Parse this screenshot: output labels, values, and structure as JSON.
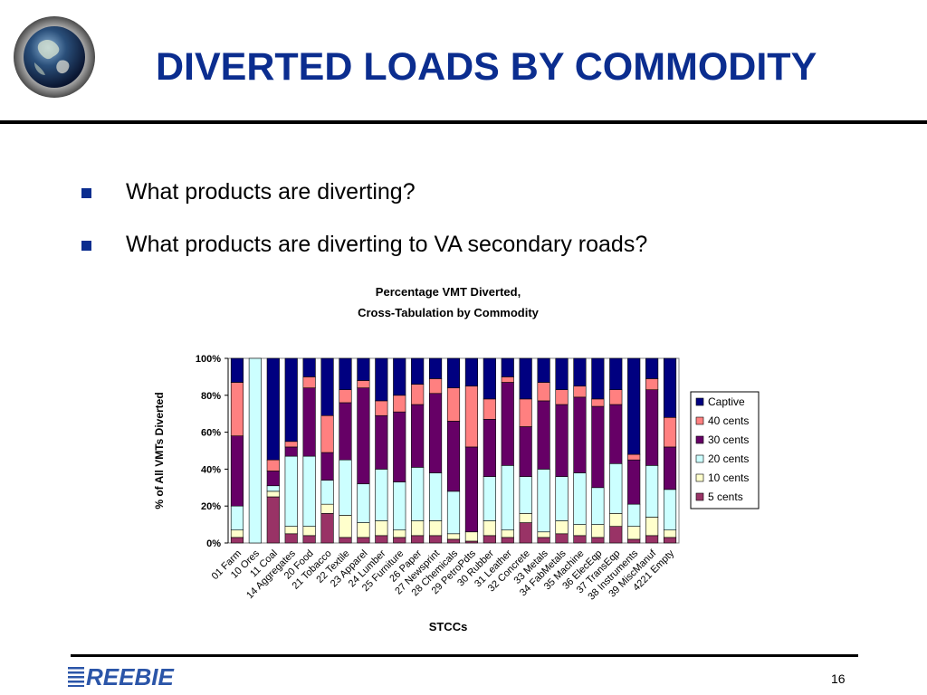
{
  "slide": {
    "title": "DIVERTED LOADS BY COMMODITY",
    "bullets": [
      "What products are diverting?",
      "What products are diverting to VA secondary roads?"
    ],
    "page_number": "16",
    "logo_text": "REEBIE",
    "accent_color": "#0b2d8f"
  },
  "chart_data": {
    "type": "bar",
    "stacked": true,
    "title": [
      "Percentage VMT Diverted,",
      "Cross-Tabulation by Commodity"
    ],
    "xlabel": "STCCs",
    "ylabel": "% of All VMTs Diverted",
    "ylim": [
      0,
      100
    ],
    "yticks": [
      "0%",
      "20%",
      "40%",
      "60%",
      "80%",
      "100%"
    ],
    "legend_position": "right",
    "categories": [
      "01 Farm",
      "10 Ores",
      "11 Coal",
      "14 Aggregates",
      "20 Food",
      "21 Tobacco",
      "22 Textile",
      "23 Apparel",
      "24 Lumber",
      "25 Furniture",
      "26 Paper",
      "27 Newsprint",
      "28 Chemicals",
      "29 PetroPdts",
      "30 Rubber",
      "31 Leather",
      "32 Concrete",
      "33 Metals",
      "34 FabMetals",
      "35 Machine",
      "36 ElecEqp",
      "37 TransEqp",
      "38 Instruments",
      "39 MiscManuf",
      "4221 Empty"
    ],
    "series": [
      {
        "name": "5 cents",
        "color": "#993366",
        "values": [
          3,
          0,
          25,
          5,
          4,
          16,
          3,
          3,
          4,
          3,
          4,
          4,
          2,
          1,
          4,
          3,
          11,
          3,
          5,
          4,
          3,
          9,
          2,
          4,
          3
        ]
      },
      {
        "name": "10 cents",
        "color": "#ffffcc",
        "values": [
          4,
          0,
          3,
          4,
          5,
          5,
          12,
          8,
          8,
          4,
          8,
          8,
          3,
          5,
          8,
          4,
          5,
          3,
          7,
          6,
          7,
          7,
          7,
          10,
          4
        ]
      },
      {
        "name": "20 cents",
        "color": "#ccffff",
        "values": [
          13,
          100,
          3,
          38,
          38,
          13,
          30,
          21,
          28,
          26,
          29,
          26,
          23,
          0,
          24,
          35,
          20,
          34,
          24,
          28,
          20,
          27,
          12,
          28,
          22
        ]
      },
      {
        "name": "30 cents",
        "color": "#660066",
        "values": [
          38,
          0,
          8,
          5,
          37,
          15,
          31,
          52,
          29,
          38,
          34,
          43,
          38,
          46,
          31,
          45,
          27,
          37,
          39,
          41,
          44,
          32,
          24,
          41,
          23
        ]
      },
      {
        "name": "40 cents",
        "color": "#ff8080",
        "values": [
          29,
          0,
          6,
          3,
          6,
          20,
          7,
          4,
          8,
          9,
          11,
          8,
          18,
          33,
          11,
          3,
          15,
          10,
          8,
          6,
          4,
          8,
          3,
          6,
          16
        ]
      },
      {
        "name": "Captive",
        "color": "#000080",
        "values": [
          13,
          0,
          55,
          45,
          10,
          31,
          17,
          12,
          23,
          20,
          14,
          11,
          16,
          15,
          22,
          10,
          22,
          13,
          17,
          15,
          22,
          17,
          52,
          11,
          32
        ]
      }
    ]
  }
}
